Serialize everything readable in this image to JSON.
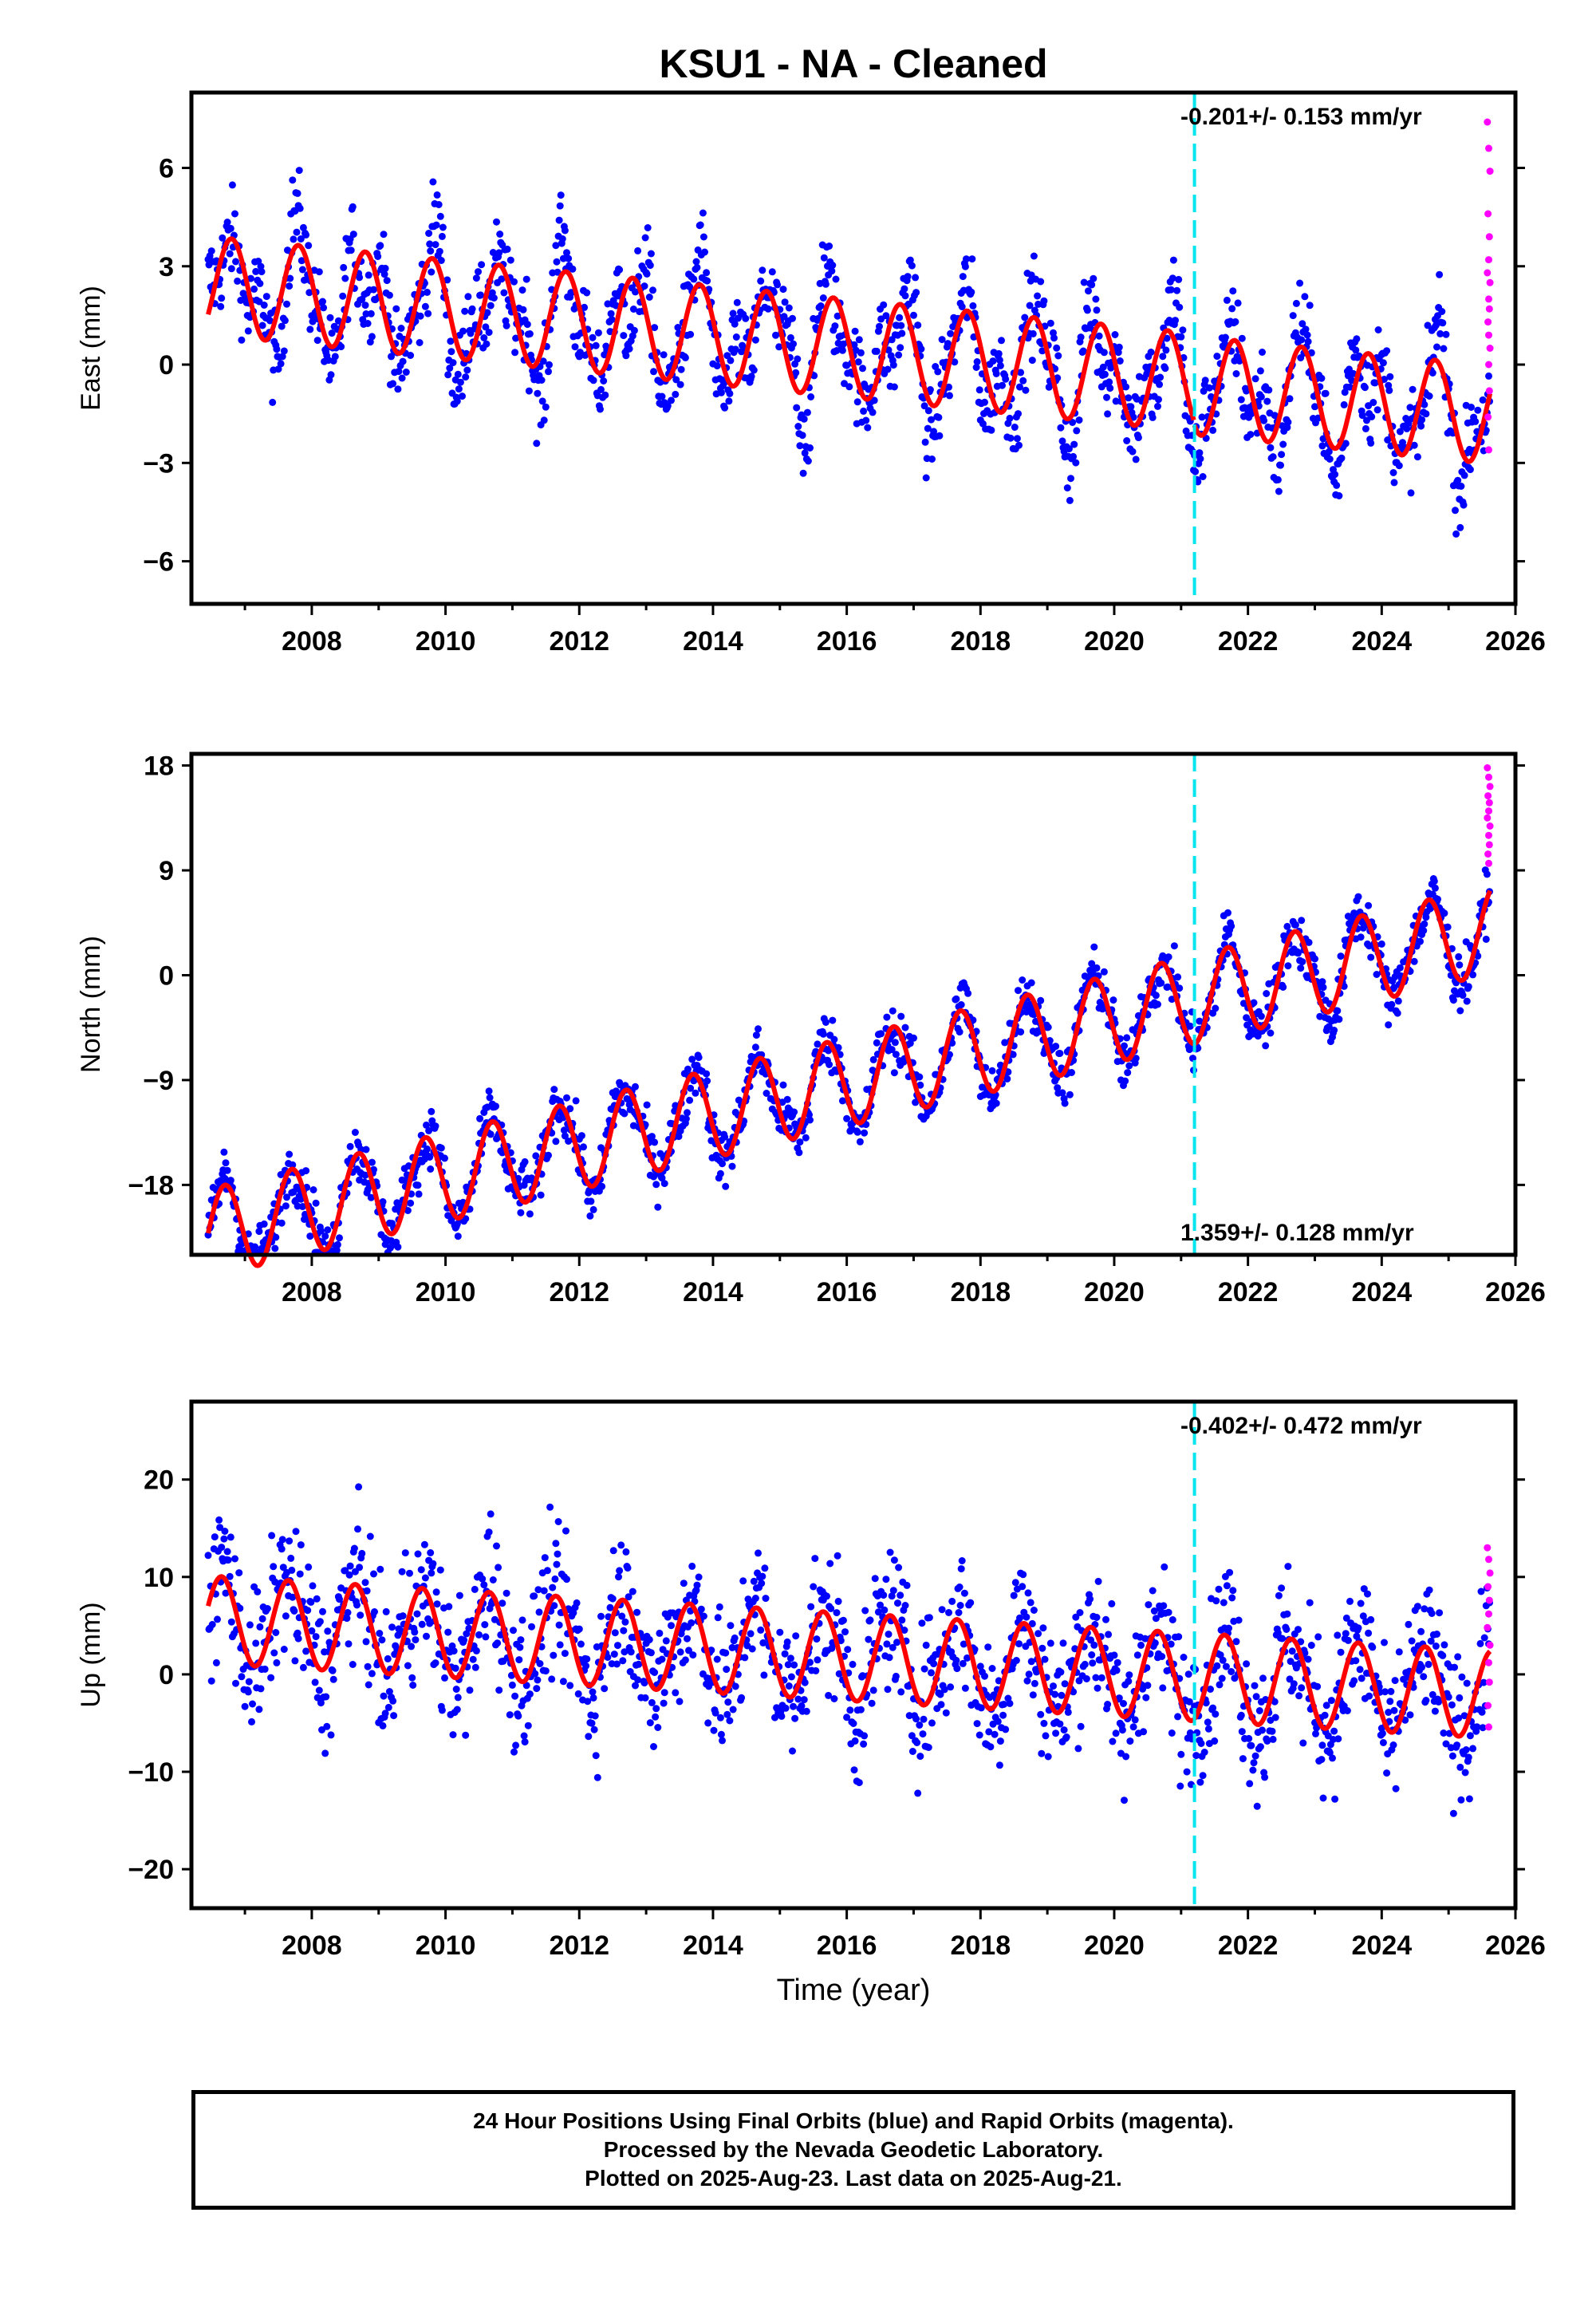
{
  "title": "KSU1  - NA - Cleaned",
  "colors": {
    "final": "#0000ff",
    "rapid": "#ff00ff",
    "model": "#ff0000",
    "break": "#00e5ee"
  },
  "chart_data": {
    "type": "scatter",
    "break_year": 2021.2,
    "x_range": [
      2006.2,
      2026.0
    ],
    "x_ticks": [
      2008,
      2010,
      2012,
      2014,
      2016,
      2018,
      2020,
      2022,
      2024,
      2026
    ],
    "xlabel": "Time (year)",
    "panels": [
      {
        "id": "east",
        "ylabel": "East (mm)",
        "ylim": [
          -7.3,
          8.3
        ],
        "y_ticks": [
          -6,
          -3,
          0,
          3,
          6
        ],
        "rate_label": "-0.201+/- 0.153 mm/yr",
        "rate_pos": "top",
        "scatter_amp": 1.5,
        "scatter_spread": 0.7,
        "segments": [
          {
            "x0": 2006.45,
            "x1": 2021.2,
            "y0": 1.3,
            "slope": -0.2,
            "amp": 1.5,
            "phase": 0.55
          },
          {
            "x0": 2021.2,
            "x1": 2025.62,
            "y0": 1.2,
            "slope": -0.2,
            "amp": 1.5,
            "phase": 0.55
          }
        ],
        "rapid_points": [
          [
            2025.58,
            7.4
          ],
          [
            2025.6,
            6.6
          ],
          [
            2025.62,
            5.9
          ],
          [
            2025.59,
            4.6
          ],
          [
            2025.61,
            3.9
          ],
          [
            2025.6,
            3.2
          ],
          [
            2025.58,
            2.8
          ],
          [
            2025.62,
            2.5
          ],
          [
            2025.6,
            2.0
          ],
          [
            2025.61,
            1.7
          ],
          [
            2025.59,
            1.3
          ],
          [
            2025.6,
            0.9
          ],
          [
            2025.62,
            0.5
          ],
          [
            2025.6,
            0.0
          ],
          [
            2025.61,
            -0.8
          ],
          [
            2025.59,
            -1.6
          ],
          [
            2025.6,
            -2.6
          ]
        ]
      },
      {
        "id": "north",
        "ylabel": "North (mm)",
        "ylim": [
          -24,
          19
        ],
        "y_ticks": [
          -18,
          -9,
          0,
          9,
          18
        ],
        "rate_label": "1.359+/- 0.128 mm/yr",
        "rate_pos": "bottom",
        "scatter_amp": 1.2,
        "scatter_spread": 1.2,
        "segments": [
          {
            "x0": 2006.45,
            "x1": 2021.2,
            "y0": -14.6,
            "slope": 1.36,
            "amp": 3.8,
            "phase": 0.45
          },
          {
            "x0": 2021.2,
            "x1": 2025.62,
            "y0": -14.6,
            "slope": 1.36,
            "amp": 3.8,
            "phase": 0.45
          }
        ],
        "rapid_points": [
          [
            2025.58,
            17.8
          ],
          [
            2025.6,
            17.0
          ],
          [
            2025.62,
            16.2
          ],
          [
            2025.59,
            15.4
          ],
          [
            2025.61,
            14.8
          ],
          [
            2025.6,
            14.1
          ],
          [
            2025.58,
            13.5
          ],
          [
            2025.62,
            12.8
          ],
          [
            2025.6,
            12.0
          ],
          [
            2025.61,
            11.2
          ],
          [
            2025.59,
            10.4
          ],
          [
            2025.6,
            9.6
          ]
        ]
      },
      {
        "id": "up",
        "ylabel": "Up (mm)",
        "ylim": [
          -24,
          28
        ],
        "y_ticks": [
          -20,
          -10,
          0,
          10,
          20
        ],
        "rate_label": "-0.402+/- 0.472 mm/yr",
        "rate_pos": "top",
        "scatter_amp": 1.8,
        "scatter_spread": 3.6,
        "segments": [
          {
            "x0": 2006.45,
            "x1": 2021.2,
            "y0": 3.4,
            "slope": -0.4,
            "amp": 4.5,
            "phase": 0.4
          },
          {
            "x0": 2021.2,
            "x1": 2025.62,
            "y0": 3.4,
            "slope": -0.4,
            "amp": 4.5,
            "phase": 0.4
          }
        ],
        "rapid_points": [
          [
            2025.58,
            13.0
          ],
          [
            2025.6,
            11.8
          ],
          [
            2025.62,
            10.4
          ],
          [
            2025.59,
            9.0
          ],
          [
            2025.61,
            7.6
          ],
          [
            2025.6,
            6.2
          ],
          [
            2025.58,
            4.8
          ],
          [
            2025.62,
            3.0
          ],
          [
            2025.6,
            1.2
          ],
          [
            2025.61,
            -0.8
          ],
          [
            2025.59,
            -3.2
          ],
          [
            2025.6,
            -5.4
          ]
        ]
      }
    ]
  },
  "footer": {
    "line1": "24 Hour Positions Using Final Orbits (blue) and Rapid Orbits (magenta).",
    "line2": "Processed by the Nevada Geodetic Laboratory.",
    "line3": "Plotted on 2025-Aug-23. Last data on 2025-Aug-21."
  }
}
